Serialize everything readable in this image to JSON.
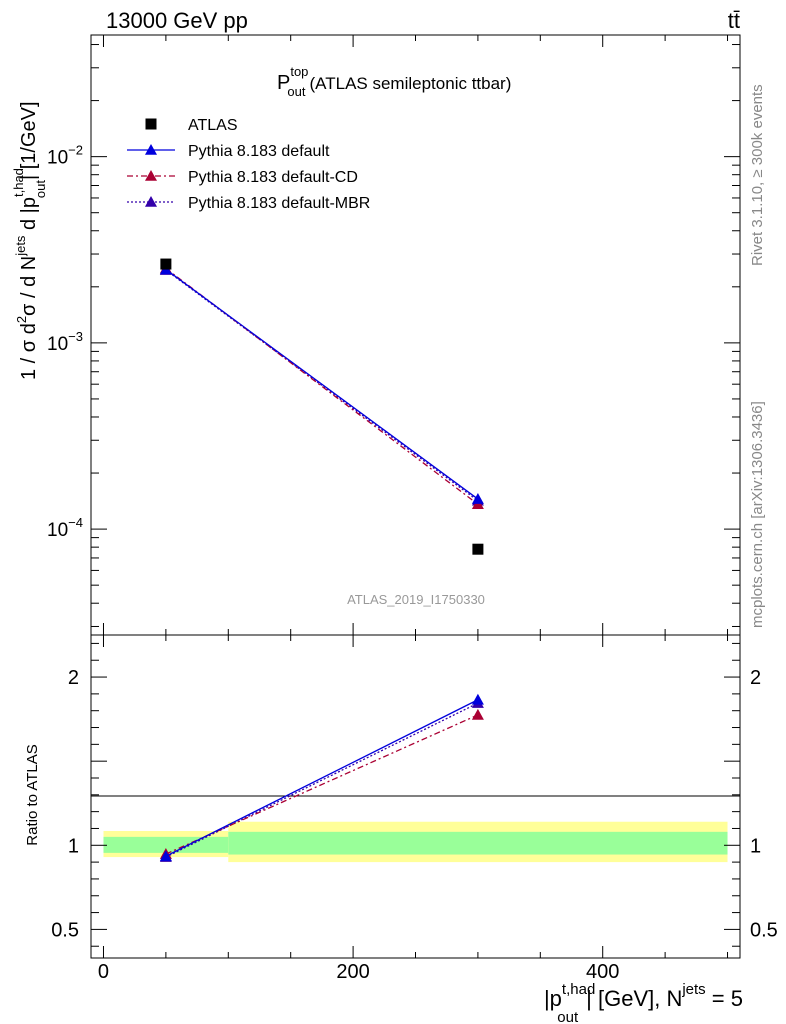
{
  "header": {
    "energy_label": "13000 GeV pp",
    "process_label": "tt̄"
  },
  "side_labels": {
    "rivet": "Rivet 3.1.10, ≥ 300k events",
    "mcplots": "mcplots.cern.ch [arXiv:1306.3436]"
  },
  "plot_title": {
    "main": "P",
    "sup": "top",
    "sub": "out",
    "rest": "(ATLAS semileptonic ttbar)"
  },
  "watermark": "ATLAS_2019_I1750330",
  "colors": {
    "data": "#000000",
    "default": "#0000dd",
    "cd": "#aa0033",
    "mbr": "#3300aa",
    "band_outer": "#ffff99",
    "band_inner": "#99ff99"
  },
  "chart_data": [
    {
      "type": "scatter",
      "panel": "main",
      "ylabel": {
        "prefix": "1 / σ d",
        "sup2": "2",
        "mid": "σ / d N",
        "sup_jets": "jets",
        "mid2": " d |p",
        "sup_thad": "t,had",
        "sub_out": "out",
        "suffix": "| [1/GeV]"
      },
      "yscale": "log",
      "ylim": [
        2.7e-05,
        0.045
      ],
      "xlim": [
        -10,
        510
      ],
      "y_tick_labels": [
        {
          "value": 0.01,
          "base": "10",
          "exp": "−2"
        },
        {
          "value": 0.001,
          "base": "10",
          "exp": "−3"
        },
        {
          "value": 0.0001,
          "base": "10",
          "exp": "−4"
        }
      ],
      "legend": {
        "position": "top-left",
        "entries": [
          {
            "key": "data",
            "label": "ATLAS"
          },
          {
            "key": "default",
            "label": "Pythia 8.183 default"
          },
          {
            "key": "cd",
            "label": "Pythia 8.183 default-CD"
          },
          {
            "key": "mbr",
            "label": "Pythia 8.183 default-MBR"
          }
        ]
      },
      "series": [
        {
          "name": "ATLAS",
          "key": "data",
          "x": [
            50,
            300
          ],
          "values": [
            0.00265,
            7.8e-05
          ]
        },
        {
          "name": "Pythia 8.183 default",
          "key": "default",
          "x": [
            50,
            300
          ],
          "values": [
            0.00248,
            0.000145
          ]
        },
        {
          "name": "Pythia 8.183 default-CD",
          "key": "cd",
          "x": [
            50,
            300
          ],
          "values": [
            0.00251,
            0.000136
          ]
        },
        {
          "name": "Pythia 8.183 default-MBR",
          "key": "mbr",
          "x": [
            50,
            300
          ],
          "values": [
            0.00246,
            0.000142
          ]
        }
      ]
    },
    {
      "type": "line",
      "panel": "ratio",
      "ylabel": "Ratio to ATLAS",
      "ylim": [
        0.33,
        2.25
      ],
      "xlim": [
        -10,
        510
      ],
      "y_tick_labels": [
        {
          "value": 2,
          "label": "2"
        },
        {
          "value": 1,
          "label": "1"
        },
        {
          "value": 0.5,
          "label": "0.5"
        }
      ],
      "x_tick_labels": [
        {
          "value": 0,
          "label": "0"
        },
        {
          "value": 200,
          "label": "200"
        },
        {
          "value": 400,
          "label": "400"
        }
      ],
      "xlabel": {
        "prefix": "|p",
        "sup": "t,had",
        "sub": "out",
        "middle": "| [GeV], N",
        "sup2": "jets",
        "suffix": " = 5"
      },
      "bands": [
        {
          "x0": 0,
          "x1": 100,
          "outer": [
            0.93,
            1.085
          ],
          "inner": [
            0.955,
            1.05
          ]
        },
        {
          "x0": 100,
          "x1": 500,
          "outer": [
            0.9,
            1.14
          ],
          "inner": [
            0.945,
            1.08
          ]
        }
      ],
      "series": [
        {
          "name": "Pythia 8.183 default",
          "key": "default",
          "x": [
            50,
            300
          ],
          "values": [
            0.935,
            1.865
          ]
        },
        {
          "name": "Pythia 8.183 default-CD",
          "key": "cd",
          "x": [
            50,
            300
          ],
          "values": [
            0.948,
            1.775
          ]
        },
        {
          "name": "Pythia 8.183 default-MBR",
          "key": "mbr",
          "x": [
            50,
            300
          ],
          "values": [
            0.93,
            1.845
          ]
        }
      ]
    }
  ]
}
